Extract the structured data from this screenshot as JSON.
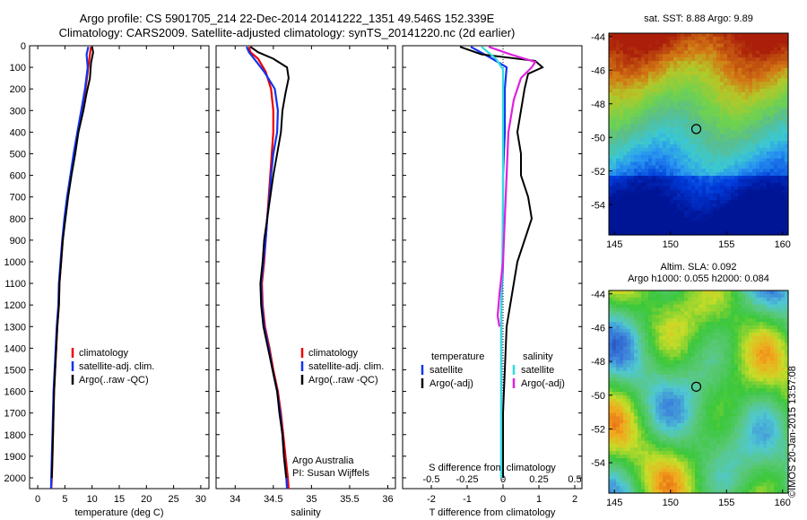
{
  "header": {
    "title_line1": "Argo profile: CS 5901705_214 22-Dec-2014 20141222_1351 49.546S 152.339E",
    "title_line2": "Climatology: CARS2009. Satellite-adjusted climatology: synTS_20141220.nc (2d earlier)"
  },
  "colors": {
    "climatology": "#ee0000",
    "satellite": "#1133ee",
    "argo": "#000000",
    "satellite_salinity": "#33dddd",
    "argo_adj_salinity": "#dd22dd"
  },
  "depth_axis": {
    "range": [
      0,
      2050
    ],
    "ticks": [
      0,
      100,
      200,
      300,
      400,
      500,
      600,
      700,
      800,
      900,
      1000,
      1100,
      1200,
      1300,
      1400,
      1500,
      1600,
      1700,
      1800,
      1900,
      2000
    ]
  },
  "chart_data": [
    {
      "type": "line",
      "panel": "temperature",
      "xlabel": "temperature (deg C)",
      "xlim": [
        -1.5,
        31.5
      ],
      "xticks": [
        0,
        5,
        10,
        15,
        20,
        25,
        30
      ],
      "legend_position": "lower-left",
      "legend": [
        "climatology",
        "satellite-adj. clim.",
        "Argo(..raw -QC)"
      ],
      "series": [
        {
          "name": "climatology",
          "color_key": "climatology",
          "points": [
            [
              9.8,
              5
            ],
            [
              9.6,
              40
            ],
            [
              9.3,
              100
            ],
            [
              8.8,
              200
            ],
            [
              8.2,
              300
            ],
            [
              7.4,
              400
            ],
            [
              6.7,
              500
            ],
            [
              6.1,
              600
            ],
            [
              5.5,
              700
            ],
            [
              5.0,
              800
            ],
            [
              4.6,
              900
            ],
            [
              4.3,
              1000
            ],
            [
              4.0,
              1100
            ],
            [
              3.9,
              1200
            ],
            [
              3.6,
              1300
            ],
            [
              3.4,
              1400
            ],
            [
              3.2,
              1500
            ],
            [
              3.0,
              1600
            ],
            [
              2.9,
              1700
            ],
            [
              2.8,
              1800
            ],
            [
              2.7,
              1900
            ],
            [
              2.6,
              2000
            ],
            [
              2.5,
              2050
            ]
          ]
        },
        {
          "name": "satellite-adj. clim.",
          "color_key": "satellite",
          "points": [
            [
              9.3,
              5
            ],
            [
              9.0,
              40
            ],
            [
              9.2,
              100
            ],
            [
              8.7,
              200
            ],
            [
              8.0,
              300
            ],
            [
              7.3,
              400
            ],
            [
              6.6,
              500
            ],
            [
              6.0,
              600
            ],
            [
              5.4,
              700
            ],
            [
              4.9,
              800
            ],
            [
              4.5,
              900
            ],
            [
              4.2,
              1000
            ],
            [
              3.9,
              1100
            ],
            [
              3.8,
              1200
            ],
            [
              3.5,
              1300
            ],
            [
              3.3,
              1400
            ],
            [
              3.1,
              1500
            ],
            [
              2.9,
              1600
            ],
            [
              2.8,
              1700
            ],
            [
              2.7,
              1800
            ],
            [
              2.6,
              1900
            ],
            [
              2.5,
              2000
            ],
            [
              2.45,
              2050
            ]
          ]
        },
        {
          "name": "Argo(..raw -QC)",
          "color_key": "argo",
          "points": [
            [
              10.0,
              5
            ],
            [
              10.2,
              30
            ],
            [
              9.8,
              80
            ],
            [
              9.6,
              150
            ],
            [
              9.0,
              220
            ],
            [
              8.4,
              300
            ],
            [
              7.5,
              400
            ],
            [
              6.9,
              500
            ],
            [
              6.2,
              600
            ],
            [
              5.6,
              700
            ],
            [
              5.1,
              800
            ],
            [
              4.6,
              900
            ],
            [
              4.3,
              1000
            ],
            [
              4.0,
              1100
            ],
            [
              3.9,
              1200
            ],
            [
              3.6,
              1300
            ],
            [
              3.4,
              1400
            ],
            [
              3.2,
              1500
            ],
            [
              3.0,
              1600
            ],
            [
              2.9,
              1700
            ],
            [
              2.8,
              1800
            ],
            [
              2.7,
              1900
            ],
            [
              2.6,
              2000
            ]
          ]
        }
      ]
    },
    {
      "type": "line",
      "panel": "salinity",
      "xlabel": "salinity",
      "xlim": [
        33.75,
        36.1
      ],
      "xticks": [
        34,
        34.5,
        35,
        35.5,
        36
      ],
      "legend_position": "lower-left",
      "legend": [
        "climatology",
        "satellite-adj. clim.",
        "Argo(..raw -QC)"
      ],
      "annotation": [
        "Argo Australia",
        "PI: Susan Wijffels"
      ],
      "series": [
        {
          "name": "climatology",
          "color_key": "climatology",
          "points": [
            [
              34.18,
              5
            ],
            [
              34.2,
              30
            ],
            [
              34.3,
              60
            ],
            [
              34.4,
              120
            ],
            [
              34.47,
              200
            ],
            [
              34.5,
              300
            ],
            [
              34.5,
              400
            ],
            [
              34.48,
              500
            ],
            [
              34.46,
              600
            ],
            [
              34.44,
              700
            ],
            [
              34.42,
              800
            ],
            [
              34.4,
              900
            ],
            [
              34.38,
              1000
            ],
            [
              34.35,
              1100
            ],
            [
              34.36,
              1200
            ],
            [
              34.39,
              1300
            ],
            [
              34.45,
              1400
            ],
            [
              34.5,
              1500
            ],
            [
              34.56,
              1600
            ],
            [
              34.6,
              1700
            ],
            [
              34.63,
              1800
            ],
            [
              34.66,
              1900
            ],
            [
              34.69,
              2000
            ],
            [
              34.7,
              2050
            ]
          ]
        },
        {
          "name": "satellite-adj. clim.",
          "color_key": "satellite",
          "points": [
            [
              34.15,
              5
            ],
            [
              34.18,
              30
            ],
            [
              34.27,
              70
            ],
            [
              34.38,
              120
            ],
            [
              34.52,
              200
            ],
            [
              34.56,
              300
            ],
            [
              34.55,
              400
            ],
            [
              34.5,
              500
            ],
            [
              34.47,
              600
            ],
            [
              34.45,
              700
            ],
            [
              34.42,
              800
            ],
            [
              34.4,
              900
            ],
            [
              34.37,
              1000
            ],
            [
              34.34,
              1100
            ],
            [
              34.35,
              1200
            ],
            [
              34.38,
              1300
            ],
            [
              34.44,
              1400
            ],
            [
              34.49,
              1500
            ],
            [
              34.55,
              1600
            ],
            [
              34.59,
              1700
            ],
            [
              34.62,
              1800
            ],
            [
              34.64,
              1900
            ],
            [
              34.67,
              2000
            ],
            [
              34.68,
              2050
            ]
          ]
        },
        {
          "name": "Argo(..raw -QC)",
          "color_key": "argo",
          "points": [
            [
              34.2,
              5
            ],
            [
              34.3,
              30
            ],
            [
              34.5,
              60
            ],
            [
              34.68,
              100
            ],
            [
              34.7,
              150
            ],
            [
              34.66,
              220
            ],
            [
              34.62,
              300
            ],
            [
              34.6,
              400
            ],
            [
              34.55,
              500
            ],
            [
              34.5,
              600
            ],
            [
              34.46,
              700
            ],
            [
              34.42,
              800
            ],
            [
              34.38,
              900
            ],
            [
              34.36,
              1000
            ],
            [
              34.33,
              1100
            ],
            [
              34.34,
              1200
            ],
            [
              34.37,
              1300
            ],
            [
              34.43,
              1400
            ],
            [
              34.49,
              1500
            ],
            [
              34.55,
              1600
            ],
            [
              34.58,
              1700
            ],
            [
              34.62,
              1800
            ],
            [
              34.64,
              1900
            ],
            [
              34.67,
              2000
            ]
          ]
        }
      ]
    },
    {
      "type": "line",
      "panel": "difference",
      "xlabel": "T difference from climatology",
      "xlabel_top": "S difference from climatology",
      "xlim": [
        -2.8,
        2.2
      ],
      "xticks_T": [
        -2,
        -1,
        0,
        1,
        2
      ],
      "xticks_S": [
        "-0.5",
        "-0.25",
        "0",
        "0.25",
        "0.5"
      ],
      "legend_headers": [
        "temperature",
        "salinity"
      ],
      "legend": [
        "satellite",
        "Argo(-adj)",
        "satellite",
        "Argo(-adj)"
      ],
      "series": [
        {
          "name": "temperature satellite",
          "color_key": "satellite",
          "points": [
            [
              -0.9,
              5
            ],
            [
              -0.3,
              60
            ],
            [
              0.1,
              100
            ],
            [
              0.05,
              200
            ],
            [
              0.05,
              400
            ],
            [
              0.0,
              600
            ],
            [
              0.0,
              800
            ],
            [
              0.0,
              1000
            ],
            [
              -0.05,
              1200
            ],
            [
              -0.05,
              1500
            ],
            [
              -0.05,
              1800
            ],
            [
              -0.05,
              2000
            ]
          ]
        },
        {
          "name": "temperature Argo(-adj)",
          "color_key": "argo",
          "points": [
            [
              -1.2,
              5
            ],
            [
              -0.6,
              40
            ],
            [
              0.9,
              70
            ],
            [
              1.1,
              100
            ],
            [
              0.7,
              130
            ],
            [
              0.6,
              200
            ],
            [
              0.5,
              300
            ],
            [
              0.4,
              400
            ],
            [
              0.5,
              500
            ],
            [
              0.5,
              600
            ],
            [
              0.7,
              700
            ],
            [
              0.8,
              800
            ],
            [
              0.6,
              900
            ],
            [
              0.4,
              1000
            ],
            [
              0.3,
              1100
            ],
            [
              0.2,
              1200
            ],
            [
              0.1,
              1300
            ],
            [
              0.05,
              1500
            ],
            [
              0.0,
              1700
            ],
            [
              0.0,
              2000
            ]
          ]
        },
        {
          "name": "salinity satellite",
          "color_key": "satellite_salinity",
          "points": [
            [
              -0.6,
              5
            ],
            [
              -0.2,
              60
            ],
            [
              0.0,
              110
            ],
            [
              0.0,
              200
            ],
            [
              0.0,
              400
            ],
            [
              0.0,
              700
            ],
            [
              -0.02,
              1000
            ],
            [
              -0.05,
              1200
            ],
            [
              -0.05,
              1500
            ],
            [
              -0.05,
              1800
            ],
            [
              -0.05,
              2000
            ]
          ]
        },
        {
          "name": "salinity Argo(-adj)",
          "color_key": "argo_adj_salinity",
          "points": [
            [
              -0.4,
              5
            ],
            [
              0.2,
              40
            ],
            [
              0.9,
              75
            ],
            [
              0.8,
              100
            ],
            [
              0.5,
              150
            ],
            [
              0.3,
              250
            ],
            [
              0.15,
              400
            ],
            [
              0.1,
              600
            ],
            [
              0.05,
              800
            ],
            [
              0.0,
              1000
            ],
            [
              -0.1,
              1150
            ],
            [
              -0.15,
              1250
            ],
            [
              -0.1,
              1300
            ]
          ]
        }
      ]
    }
  ],
  "map_sst": {
    "title": "sat. SST: 8.88  Argo: 9.89",
    "xticks": [
      145,
      150,
      155,
      160
    ],
    "yticks": [
      -44,
      -46,
      -48,
      -50,
      -52,
      -54
    ],
    "xlim": [
      144.5,
      160.5
    ],
    "ylim": [
      -55.8,
      -43.8
    ],
    "marker": {
      "lon": 152.3,
      "lat": -49.5
    }
  },
  "map_sla": {
    "title_line1": "Altim. SLA: 0.092",
    "title_line2": "Argo h1000: 0.055 h2000: 0.084",
    "xticks": [
      145,
      150,
      155,
      160
    ],
    "yticks": [
      -44,
      -46,
      -48,
      -50,
      -52,
      -54
    ],
    "xlim": [
      144.5,
      160.5
    ],
    "ylim": [
      -55.8,
      -43.8
    ],
    "marker": {
      "lon": 152.3,
      "lat": -49.5
    }
  },
  "footer": {
    "stamp": "©IMOS 20-Jan-2015 13:57:08"
  }
}
